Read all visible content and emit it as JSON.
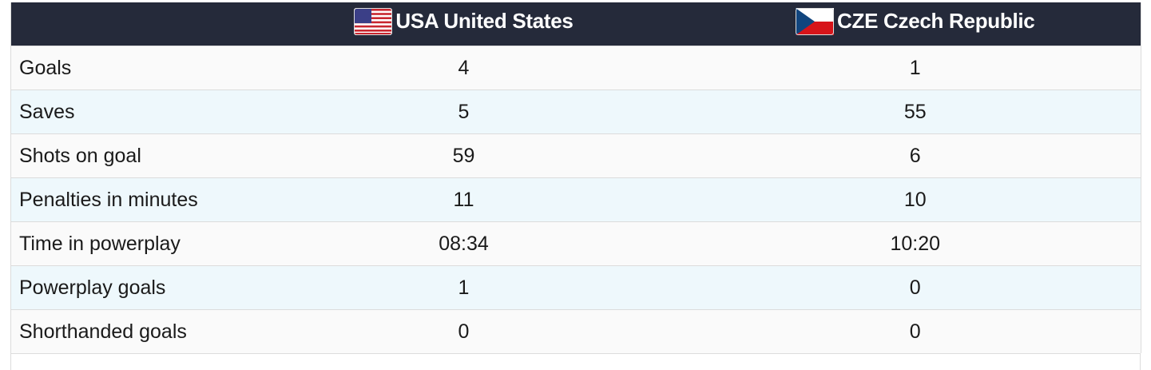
{
  "table": {
    "header": [
      "USA United States",
      "CZE Czech Republic"
    ],
    "rows": [
      [
        "Goals",
        4,
        1
      ],
      [
        "Saves",
        5,
        55
      ],
      [
        "Shots on goal",
        59,
        6
      ],
      [
        "Penalties in minutes",
        11,
        10
      ],
      [
        "Time in powerplay",
        "08:34",
        "10:20"
      ],
      [
        "Powerplay goals",
        1,
        0
      ],
      [
        "Shorthanded goals",
        0,
        0
      ]
    ]
  }
}
